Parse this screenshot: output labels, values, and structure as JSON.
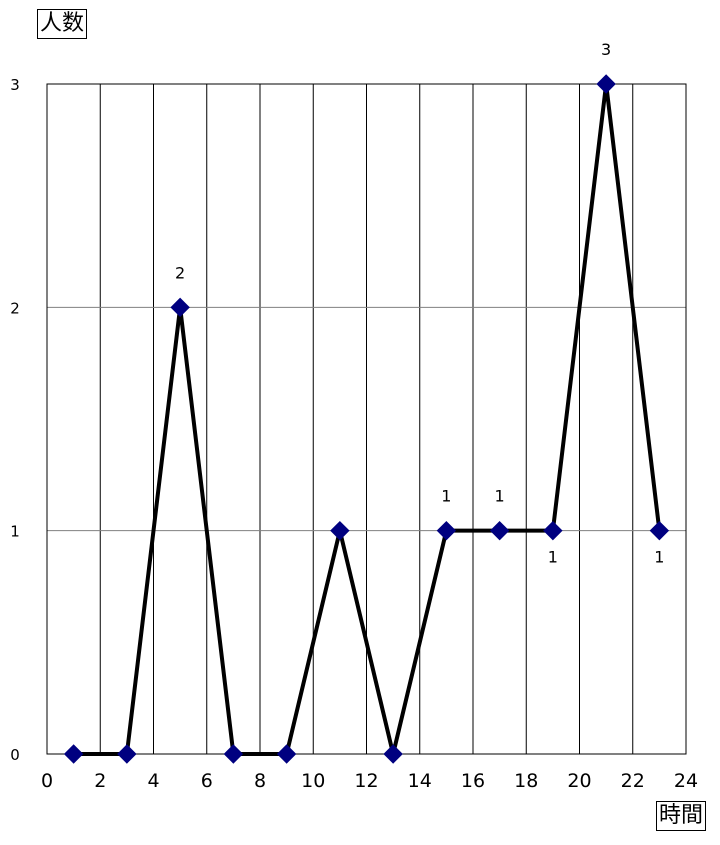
{
  "chart_data": {
    "type": "line",
    "ylabel": "人数",
    "xlabel": "時間",
    "xlim": [
      0,
      24
    ],
    "ylim": [
      0,
      3
    ],
    "x_ticks": [
      "0",
      "2",
      "4",
      "6",
      "8",
      "10",
      "12",
      "14",
      "16",
      "18",
      "20",
      "22",
      "24"
    ],
    "y_ticks": [
      "0",
      "1",
      "2",
      "3"
    ],
    "grid": {
      "vertical": true,
      "horizontal": true
    },
    "series": [
      {
        "x": [
          1,
          3,
          5,
          7,
          9,
          11,
          13,
          15,
          17,
          19,
          21,
          23
        ],
        "y": [
          0,
          0,
          2,
          0,
          0,
          1,
          0,
          1,
          1,
          1,
          3,
          1
        ],
        "line_color": "#000000",
        "marker_color": "#000080",
        "marker": "diamond"
      }
    ],
    "data_labels": [
      {
        "x": 5,
        "y": 2,
        "text": "2",
        "position": "above"
      },
      {
        "x": 15,
        "y": 1,
        "text": "1",
        "position": "above"
      },
      {
        "x": 17,
        "y": 1,
        "text": "1",
        "position": "above"
      },
      {
        "x": 19,
        "y": 1,
        "text": "1",
        "position": "below"
      },
      {
        "x": 21,
        "y": 3,
        "text": "3",
        "position": "above"
      },
      {
        "x": 23,
        "y": 1,
        "text": "1",
        "position": "below"
      }
    ]
  }
}
